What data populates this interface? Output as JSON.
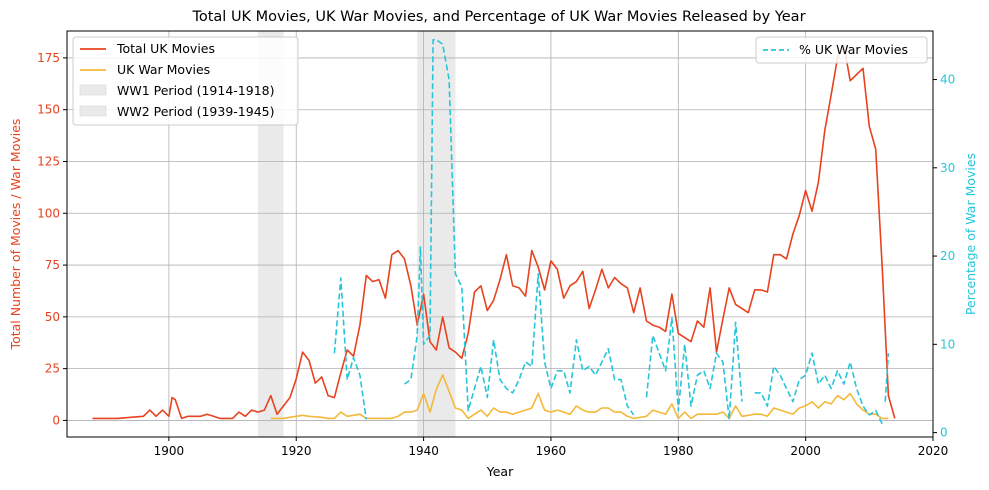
{
  "chart_data": {
    "type": "line",
    "title": "Total UK Movies, UK War Movies, and Percentage of UK War Movies Released by Year",
    "xlabel": "Year",
    "ylabel_left": "Total Number of Movies / War Movies",
    "ylabel_right": "Percentage of War Movies",
    "xlim": [
      1884,
      2020
    ],
    "ylim_left": [
      -8,
      188
    ],
    "ylim_right": [
      -0.5,
      45.5
    ],
    "x_ticks": [
      1900,
      1920,
      1940,
      1960,
      1980,
      2000,
      2020
    ],
    "y_ticks_left": [
      0,
      25,
      50,
      75,
      100,
      125,
      150,
      175
    ],
    "y_ticks_right": [
      0,
      10,
      20,
      30,
      40
    ],
    "grid": true,
    "colors": {
      "total": "#e8421e",
      "war": "#f4b93a",
      "pct": "#26c6da",
      "shade": "#d9d9d9"
    },
    "periods": [
      {
        "name": "WW1 Period (1914-1918)",
        "start": 1914,
        "end": 1918
      },
      {
        "name": "WW2 Period (1939-1945)",
        "start": 1939,
        "end": 1945
      }
    ],
    "legend_left": {
      "placement": "upper-left",
      "items": [
        "Total UK Movies",
        "UK War Movies",
        "WW1 Period (1914-1918)",
        "WW2 Period (1939-1945)"
      ]
    },
    "legend_right": {
      "placement": "upper-right",
      "items": [
        "% UK War Movies"
      ]
    },
    "series": [
      {
        "name": "Total UK Movies",
        "axis": "left",
        "style": "solid",
        "points": [
          [
            1888,
            1
          ],
          [
            1890,
            1
          ],
          [
            1892,
            1
          ],
          [
            1894,
            1.5
          ],
          [
            1896,
            2
          ],
          [
            1897,
            5
          ],
          [
            1898,
            2
          ],
          [
            1899,
            5
          ],
          [
            1900,
            2
          ],
          [
            1900.5,
            11
          ],
          [
            1901,
            10
          ],
          [
            1902,
            1
          ],
          [
            1903,
            2
          ],
          [
            1905,
            2
          ],
          [
            1906,
            3
          ],
          [
            1907,
            2
          ],
          [
            1908,
            1
          ],
          [
            1910,
            1
          ],
          [
            1911,
            4
          ],
          [
            1912,
            2
          ],
          [
            1913,
            5
          ],
          [
            1914,
            4
          ],
          [
            1915,
            5
          ],
          [
            1916,
            12
          ],
          [
            1917,
            3
          ],
          [
            1918,
            7
          ],
          [
            1919,
            11
          ],
          [
            1920,
            20
          ],
          [
            1921,
            33
          ],
          [
            1922,
            29
          ],
          [
            1923,
            18
          ],
          [
            1924,
            21
          ],
          [
            1925,
            12
          ],
          [
            1926,
            11
          ],
          [
            1927,
            23
          ],
          [
            1928,
            34
          ],
          [
            1929,
            31
          ],
          [
            1930,
            46
          ],
          [
            1931,
            70
          ],
          [
            1932,
            67
          ],
          [
            1933,
            68
          ],
          [
            1934,
            59
          ],
          [
            1935,
            80
          ],
          [
            1936,
            82
          ],
          [
            1937,
            78
          ],
          [
            1938,
            65
          ],
          [
            1939,
            46
          ],
          [
            1940,
            61
          ],
          [
            1941,
            38
          ],
          [
            1942,
            34
          ],
          [
            1943,
            50
          ],
          [
            1944,
            35
          ],
          [
            1945,
            33
          ],
          [
            1946,
            30
          ],
          [
            1947,
            42
          ],
          [
            1948,
            62
          ],
          [
            1949,
            65
          ],
          [
            1950,
            53
          ],
          [
            1951,
            58
          ],
          [
            1952,
            68
          ],
          [
            1953,
            80
          ],
          [
            1954,
            65
          ],
          [
            1955,
            64
          ],
          [
            1956,
            60
          ],
          [
            1957,
            82
          ],
          [
            1958,
            74
          ],
          [
            1959,
            63
          ],
          [
            1960,
            77
          ],
          [
            1961,
            73
          ],
          [
            1962,
            59
          ],
          [
            1963,
            65
          ],
          [
            1964,
            67
          ],
          [
            1965,
            72
          ],
          [
            1966,
            54
          ],
          [
            1967,
            63
          ],
          [
            1968,
            73
          ],
          [
            1969,
            64
          ],
          [
            1970,
            69
          ],
          [
            1971,
            66
          ],
          [
            1972,
            64
          ],
          [
            1973,
            52
          ],
          [
            1974,
            64
          ],
          [
            1975,
            48
          ],
          [
            1976,
            46
          ],
          [
            1977,
            45
          ],
          [
            1978,
            43
          ],
          [
            1979,
            61
          ],
          [
            1980,
            42
          ],
          [
            1981,
            40
          ],
          [
            1982,
            38
          ],
          [
            1983,
            48
          ],
          [
            1984,
            45
          ],
          [
            1985,
            64
          ],
          [
            1986,
            33
          ],
          [
            1987,
            49
          ],
          [
            1988,
            64
          ],
          [
            1989,
            56
          ],
          [
            1990,
            54
          ],
          [
            1991,
            52
          ],
          [
            1992,
            63
          ],
          [
            1993,
            63
          ],
          [
            1994,
            62
          ],
          [
            1995,
            80
          ],
          [
            1996,
            80
          ],
          [
            1997,
            78
          ],
          [
            1998,
            90
          ],
          [
            1999,
            99
          ],
          [
            2000,
            111
          ],
          [
            2001,
            101
          ],
          [
            2002,
            115
          ],
          [
            2003,
            140
          ],
          [
            2004,
            157
          ],
          [
            2005,
            175
          ],
          [
            2006,
            181
          ],
          [
            2007,
            164
          ],
          [
            2008,
            167
          ],
          [
            2009,
            170
          ],
          [
            2010,
            142
          ],
          [
            2011,
            131
          ],
          [
            2012,
            75
          ],
          [
            2013,
            12
          ],
          [
            2014,
            1
          ]
        ]
      },
      {
        "name": "UK War Movies",
        "axis": "left",
        "style": "solid",
        "points": [
          [
            1916,
            1
          ],
          [
            1918,
            1
          ],
          [
            1919,
            1.5
          ],
          [
            1920,
            2
          ],
          [
            1921,
            2.5
          ],
          [
            1922,
            2
          ],
          [
            1924,
            1.5
          ],
          [
            1925,
            1
          ],
          [
            1926,
            1
          ],
          [
            1927,
            4
          ],
          [
            1928,
            2
          ],
          [
            1929,
            2.5
          ],
          [
            1930,
            3
          ],
          [
            1931,
            1
          ],
          [
            1933,
            1
          ],
          [
            1935,
            1
          ],
          [
            1936,
            2
          ],
          [
            1937,
            4
          ],
          [
            1938,
            4
          ],
          [
            1939,
            5
          ],
          [
            1940,
            13
          ],
          [
            1941,
            4
          ],
          [
            1942,
            15
          ],
          [
            1943,
            22
          ],
          [
            1944,
            14
          ],
          [
            1945,
            6
          ],
          [
            1946,
            5
          ],
          [
            1947,
            1
          ],
          [
            1948,
            3
          ],
          [
            1949,
            5
          ],
          [
            1950,
            2
          ],
          [
            1951,
            6
          ],
          [
            1952,
            4
          ],
          [
            1953,
            4
          ],
          [
            1954,
            3
          ],
          [
            1955,
            4
          ],
          [
            1956,
            5
          ],
          [
            1957,
            6
          ],
          [
            1958,
            13
          ],
          [
            1959,
            5
          ],
          [
            1960,
            4
          ],
          [
            1961,
            5
          ],
          [
            1962,
            4
          ],
          [
            1963,
            3
          ],
          [
            1964,
            7
          ],
          [
            1965,
            5
          ],
          [
            1966,
            4
          ],
          [
            1967,
            4
          ],
          [
            1968,
            6
          ],
          [
            1969,
            6
          ],
          [
            1970,
            4
          ],
          [
            1971,
            4
          ],
          [
            1972,
            2
          ],
          [
            1973,
            1
          ],
          [
            1975,
            2
          ],
          [
            1976,
            5
          ],
          [
            1977,
            4
          ],
          [
            1978,
            3
          ],
          [
            1979,
            8
          ],
          [
            1980,
            1
          ],
          [
            1981,
            4
          ],
          [
            1982,
            1
          ],
          [
            1983,
            3
          ],
          [
            1984,
            3
          ],
          [
            1985,
            3
          ],
          [
            1986,
            3
          ],
          [
            1987,
            4
          ],
          [
            1988,
            1
          ],
          [
            1989,
            7
          ],
          [
            1990,
            2
          ],
          [
            1991,
            2.5
          ],
          [
            1992,
            3
          ],
          [
            1993,
            3
          ],
          [
            1994,
            2
          ],
          [
            1995,
            6
          ],
          [
            1996,
            5
          ],
          [
            1997,
            4
          ],
          [
            1998,
            3
          ],
          [
            1999,
            6
          ],
          [
            2000,
            7
          ],
          [
            2001,
            9
          ],
          [
            2002,
            6
          ],
          [
            2003,
            9
          ],
          [
            2004,
            8
          ],
          [
            2005,
            12
          ],
          [
            2006,
            10
          ],
          [
            2007,
            13
          ],
          [
            2008,
            8
          ],
          [
            2009,
            5
          ],
          [
            2010,
            3
          ],
          [
            2011,
            3
          ],
          [
            2012,
            1
          ],
          [
            2013,
            1
          ]
        ]
      },
      {
        "name": "% UK War Movies",
        "axis": "right",
        "style": "dashed",
        "segments": [
          [
            [
              1926,
              9
            ],
            [
              1927,
              17.5
            ],
            [
              1928,
              6
            ],
            [
              1929,
              8.5
            ],
            [
              1930,
              6.5
            ],
            [
              1931,
              1.5
            ]
          ],
          [
            [
              1937,
              5.5
            ],
            [
              1938,
              6
            ],
            [
              1939,
              11
            ],
            [
              1939.5,
              21
            ],
            [
              1940,
              10
            ],
            [
              1941,
              11
            ],
            [
              1941.5,
              44.5
            ],
            [
              1942,
              44.5
            ],
            [
              1943,
              44
            ],
            [
              1944,
              40
            ],
            [
              1945,
              18
            ],
            [
              1946,
              16.5
            ],
            [
              1947,
              2.5
            ],
            [
              1948,
              5
            ],
            [
              1949,
              7.5
            ],
            [
              1950,
              4
            ],
            [
              1951,
              10.5
            ],
            [
              1952,
              6
            ],
            [
              1953,
              5
            ],
            [
              1954,
              4.5
            ],
            [
              1955,
              6
            ],
            [
              1956,
              8
            ],
            [
              1957,
              7.5
            ],
            [
              1958,
              18
            ],
            [
              1959,
              8
            ],
            [
              1960,
              5
            ],
            [
              1961,
              7
            ],
            [
              1962,
              7
            ],
            [
              1963,
              4.5
            ],
            [
              1964,
              10.5
            ],
            [
              1965,
              7
            ],
            [
              1966,
              7.5
            ],
            [
              1967,
              6.5
            ],
            [
              1968,
              8
            ],
            [
              1969,
              9.5
            ],
            [
              1970,
              6
            ],
            [
              1971,
              6
            ],
            [
              1972,
              3
            ],
            [
              1973,
              2
            ]
          ],
          [
            [
              1975,
              4
            ],
            [
              1976,
              11
            ],
            [
              1977,
              9
            ],
            [
              1978,
              7
            ],
            [
              1979,
              13
            ],
            [
              1980,
              2.5
            ],
            [
              1981,
              10
            ],
            [
              1982,
              3
            ],
            [
              1983,
              6.5
            ],
            [
              1984,
              7
            ],
            [
              1985,
              5
            ],
            [
              1986,
              9
            ],
            [
              1987,
              8
            ],
            [
              1988,
              1.5
            ],
            [
              1989,
              12.5
            ],
            [
              1990,
              3.5
            ]
          ],
          [
            [
              1992,
              4.5
            ],
            [
              1993,
              4.5
            ],
            [
              1994,
              3
            ],
            [
              1995,
              7.5
            ],
            [
              1996,
              6.5
            ],
            [
              1997,
              5
            ],
            [
              1998,
              3.5
            ],
            [
              1999,
              6
            ],
            [
              2000,
              6.5
            ],
            [
              2001,
              9
            ],
            [
              2002,
              5.5
            ],
            [
              2003,
              6.5
            ],
            [
              2004,
              5
            ],
            [
              2005,
              7
            ],
            [
              2006,
              5.5
            ],
            [
              2007,
              8
            ],
            [
              2008,
              5
            ],
            [
              2009,
              3
            ],
            [
              2010,
              2
            ],
            [
              2011,
              2.5
            ],
            [
              2012,
              1
            ]
          ],
          [
            [
              2012.5,
              3.5
            ],
            [
              2013,
              9
            ]
          ]
        ]
      }
    ]
  }
}
